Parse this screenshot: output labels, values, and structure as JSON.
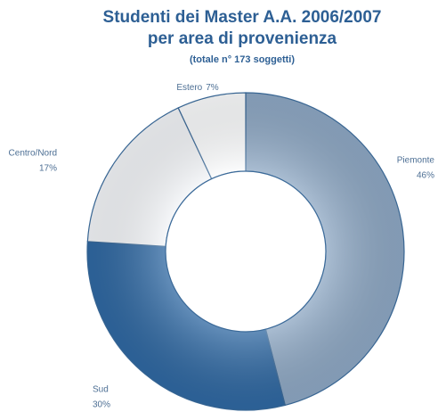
{
  "chart_data": {
    "type": "donut",
    "title": [
      "Studenti dei Master A.A. 2006/2007",
      "per area di provenienza"
    ],
    "note": "(totale n° 173 soggetti)",
    "categories": [
      "Piemonte",
      "Sud",
      "Centro/Nord",
      "Estero"
    ],
    "values": [
      46,
      30,
      17,
      7
    ],
    "value_labels": [
      "46%",
      "30%",
      "17%",
      "7%"
    ],
    "colors": [
      "#8ea8c4",
      "#2f68a2",
      "#f3f5f8",
      "#fbfcfd"
    ]
  }
}
